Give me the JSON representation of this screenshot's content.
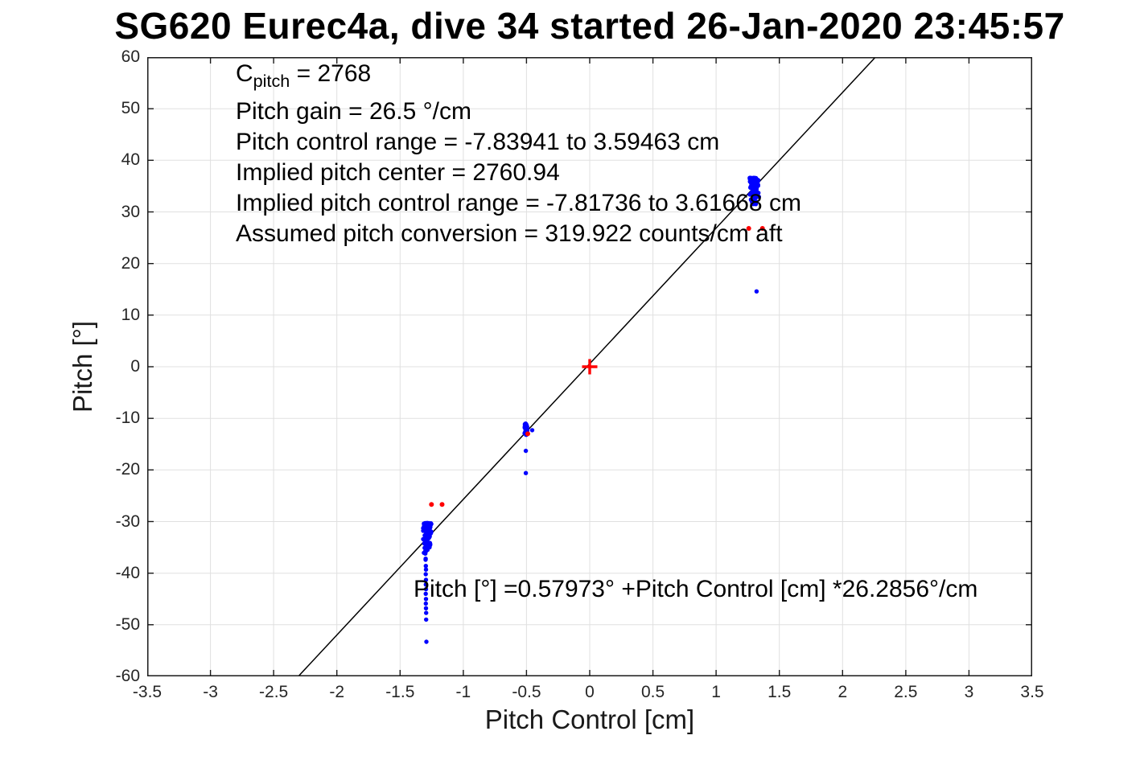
{
  "chart_data": {
    "type": "scatter",
    "title": "SG620 Eurec4a, dive 34 started 26-Jan-2020 23:45:57",
    "xlabel": "Pitch Control [cm]",
    "ylabel": "Pitch [°]",
    "xlim": [
      -3.5,
      3.5
    ],
    "ylim": [
      -60,
      60
    ],
    "x_ticks": [
      -3.5,
      -3,
      -2.5,
      -2,
      -1.5,
      -1,
      -0.5,
      0,
      0.5,
      1,
      1.5,
      2,
      2.5,
      3,
      3.5
    ],
    "y_ticks": [
      -60,
      -50,
      -40,
      -30,
      -20,
      -10,
      0,
      10,
      20,
      30,
      40,
      50,
      60
    ],
    "grid": true,
    "grid_color": "#e0e0e0",
    "axis_color": "#1a1a1a",
    "legend": "none",
    "fit_line": {
      "name": "linear-fit",
      "intercept": 0.57973,
      "slope": 26.2856,
      "color": "#000000"
    },
    "series": [
      {
        "name": "observed-pitch",
        "marker": "dot",
        "color": "#0000ff",
        "size": 2.7,
        "clusters": [
          {
            "cx": -1.285,
            "x_spread": 0.038,
            "y_min": -37.6,
            "y_max": -30.3,
            "count": 130,
            "bias": "top"
          },
          {
            "cx": -0.505,
            "x_spread": 0.013,
            "y_min": -13.3,
            "y_max": -10.7,
            "count": 40,
            "bias": "uniform"
          },
          {
            "cx": 1.3,
            "x_spread": 0.04,
            "y_min": 30.6,
            "y_max": 36.6,
            "count": 150,
            "bias": "top"
          }
        ],
        "points": [
          [
            -1.3,
            -35.7
          ],
          [
            -1.298,
            -37.4
          ],
          [
            -1.296,
            -38.6
          ],
          [
            -1.295,
            -39.3
          ],
          [
            -1.297,
            -40.2
          ],
          [
            -1.295,
            -41.3
          ],
          [
            -1.296,
            -42.2
          ],
          [
            -1.295,
            -43.1
          ],
          [
            -1.297,
            -44.0
          ],
          [
            -1.295,
            -45.0
          ],
          [
            -1.296,
            -45.9
          ],
          [
            -1.295,
            -46.8
          ],
          [
            -1.294,
            -47.7
          ],
          [
            -1.294,
            -49.0
          ],
          [
            -1.292,
            -53.3
          ],
          [
            -0.455,
            -12.3
          ],
          [
            -0.505,
            -16.3
          ],
          [
            -0.505,
            -20.6
          ],
          [
            1.32,
            14.6
          ]
        ]
      },
      {
        "name": "implied-pitch-reference",
        "marker": "dot",
        "color": "#ff0000",
        "size": 3.0,
        "clusters": [],
        "points": [
          [
            -1.252,
            -26.7
          ],
          [
            -1.168,
            -26.7
          ],
          [
            -0.49,
            -13.0
          ],
          [
            1.258,
            26.8
          ],
          [
            1.366,
            26.8
          ]
        ]
      },
      {
        "name": "pitch-center-marker",
        "marker": "plus",
        "color": "#ff0000",
        "size": 9.5,
        "clusters": [],
        "points": [
          [
            0,
            0
          ]
        ]
      }
    ]
  },
  "annotations": {
    "cpitch_prefix": "C",
    "cpitch_sub": "pitch",
    "cpitch_value": " = 2768",
    "lines": [
      "Pitch gain = 26.5 °/cm",
      "Pitch control range = -7.83941 to 3.59463 cm",
      "Implied pitch center = 2760.94",
      "Implied pitch control range = -7.81736 to 3.61668 cm",
      "Assumed pitch conversion = 319.922 counts/cm aft"
    ],
    "fit_equation": "Pitch [°] =0.57973° +Pitch Control [cm] *26.2856°/cm"
  }
}
